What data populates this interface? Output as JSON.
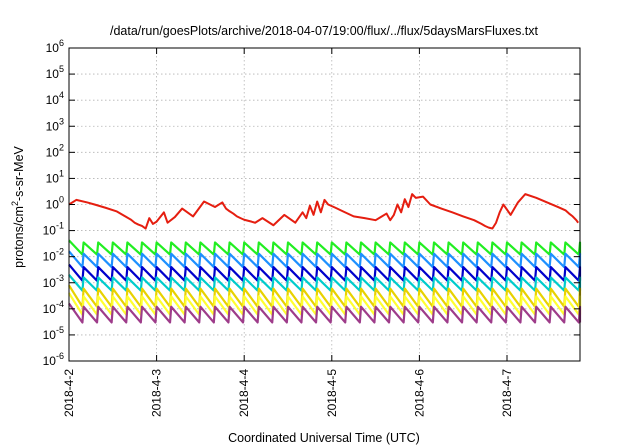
{
  "chart_data": {
    "type": "line",
    "title": "/data/run/goesPlots/archive/2018-04-07/19:00/flux/../flux/5daysMarsFluxes.txt",
    "xlabel": "Coordinated Universal Time (UTC)",
    "ylabel": "protons/cm²-s-sr-MeV",
    "ylabel_parts": {
      "pre": "protons/cm",
      "sup": "2",
      "post": "-s-sr-MeV"
    },
    "yscale": "log",
    "ylim": [
      1e-06,
      1000000.0
    ],
    "y_ticks": [
      {
        "exp": "-6"
      },
      {
        "exp": "-5"
      },
      {
        "exp": "-4"
      },
      {
        "exp": "-3"
      },
      {
        "exp": "-2"
      },
      {
        "exp": "-1"
      },
      {
        "exp": "0"
      },
      {
        "exp": "1"
      },
      {
        "exp": "2"
      },
      {
        "exp": "3"
      },
      {
        "exp": "4"
      },
      {
        "exp": "5"
      },
      {
        "exp": "6"
      }
    ],
    "xlim": [
      "2018-04-02 00:00",
      "2018-04-07 20:00"
    ],
    "x_ticks": [
      "2018-4-2",
      "2018-4-3",
      "2018-4-4",
      "2018-4-5",
      "2018-4-6",
      "2018-4-7"
    ],
    "grid": true,
    "legend": "none",
    "series": [
      {
        "color": "#e51e10",
        "x": [
          "2018-04-02 00:00",
          "2018-04-02 02:00",
          "2018-04-02 05:00",
          "2018-04-02 07:00",
          "2018-04-02 10:00",
          "2018-04-02 13:00",
          "2018-04-02 15:00",
          "2018-04-02 17:00",
          "2018-04-02 18:00",
          "2018-04-02 19:00",
          "2018-04-02 20:00",
          "2018-04-02 21:00",
          "2018-04-02 22:00",
          "2018-04-02 23:00",
          "2018-04-03 00:00",
          "2018-04-03 02:00",
          "2018-04-03 03:00",
          "2018-04-03 05:00",
          "2018-04-03 07:00",
          "2018-04-03 10:00",
          "2018-04-03 13:00",
          "2018-04-03 16:00",
          "2018-04-03 18:00",
          "2018-04-03 19:00",
          "2018-04-03 20:00",
          "2018-04-03 21:00",
          "2018-04-03 22:00",
          "2018-04-03 23:00",
          "2018-04-04 00:00",
          "2018-04-04 02:00",
          "2018-04-04 03:00",
          "2018-04-04 05:00",
          "2018-04-04 08:00",
          "2018-04-04 11:00",
          "2018-04-04 14:00",
          "2018-04-04 16:00",
          "2018-04-04 17:00",
          "2018-04-04 18:00",
          "2018-04-04 19:00",
          "2018-04-04 20:00",
          "2018-04-04 21:00",
          "2018-04-04 22:00",
          "2018-04-04 23:00",
          "2018-04-05 01:00",
          "2018-04-05 03:00",
          "2018-04-05 06:00",
          "2018-04-05 09:00",
          "2018-04-05 12:00",
          "2018-04-05 15:00",
          "2018-04-05 16:00",
          "2018-04-05 17:00",
          "2018-04-05 18:00",
          "2018-04-05 19:00",
          "2018-04-05 20:00",
          "2018-04-05 21:00",
          "2018-04-05 22:00",
          "2018-04-05 23:00",
          "2018-04-06 01:00",
          "2018-04-06 03:00",
          "2018-04-06 06:00",
          "2018-04-06 09:00",
          "2018-04-06 12:00",
          "2018-04-06 15:00",
          "2018-04-06 17:00",
          "2018-04-06 18:00",
          "2018-04-06 19:00",
          "2018-04-06 20:00",
          "2018-04-06 21:00",
          "2018-04-06 22:00",
          "2018-04-06 23:00",
          "2018-04-07 01:00",
          "2018-04-07 03:00",
          "2018-04-07 05:00",
          "2018-04-07 08:00",
          "2018-04-07 11:00",
          "2018-04-07 14:00",
          "2018-04-07 16:00",
          "2018-04-07 17:00",
          "2018-04-07 18:00",
          "2018-04-07 19:00",
          "2018-04-07 19:30"
        ],
        "y": [
          1.0,
          1.5,
          1.2,
          1.0,
          0.75,
          0.55,
          0.38,
          0.26,
          0.2,
          0.17,
          0.15,
          0.12,
          0.3,
          0.18,
          0.22,
          0.5,
          0.2,
          0.33,
          0.7,
          0.35,
          1.3,
          0.8,
          1.2,
          0.7,
          0.55,
          0.45,
          0.35,
          0.3,
          0.26,
          0.22,
          0.2,
          0.3,
          0.16,
          0.4,
          0.2,
          0.5,
          0.3,
          0.9,
          0.4,
          1.3,
          0.5,
          1.5,
          1.0,
          0.75,
          0.55,
          0.35,
          0.3,
          0.25,
          0.45,
          0.25,
          0.4,
          1.0,
          0.5,
          1.6,
          0.8,
          2.5,
          1.8,
          2.0,
          1.0,
          0.7,
          0.5,
          0.35,
          0.25,
          0.18,
          0.15,
          0.13,
          0.12,
          0.2,
          0.5,
          1.0,
          0.4,
          1.2,
          2.5,
          1.8,
          1.2,
          0.8,
          0.6,
          0.45,
          0.35,
          0.25,
          0.2
        ]
      }
    ],
    "band_series": [
      {
        "color": "#22ee22",
        "low": 0.012,
        "high": 0.035,
        "first_peak": 0.042
      },
      {
        "color": "#1e90ff",
        "low": 0.004,
        "high": 0.013,
        "first_peak": 0.016
      },
      {
        "color": "#0000cc",
        "low": 0.0012,
        "high": 0.004,
        "first_peak": 0.005
      },
      {
        "color": "#00cccc",
        "low": 0.0005,
        "high": 0.0016,
        "first_peak": 0.002
      },
      {
        "color": "#e8d200",
        "low": 0.00012,
        "high": 0.0006,
        "first_peak": 0.0008
      },
      {
        "color": "#ffff30",
        "low": 6e-05,
        "high": 0.0003,
        "first_peak": 0.0004
      },
      {
        "color": "#9e3c8a",
        "low": 3e-05,
        "high": 0.00012,
        "first_peak": 0.00016
      }
    ],
    "band_period_hours": 4
  }
}
